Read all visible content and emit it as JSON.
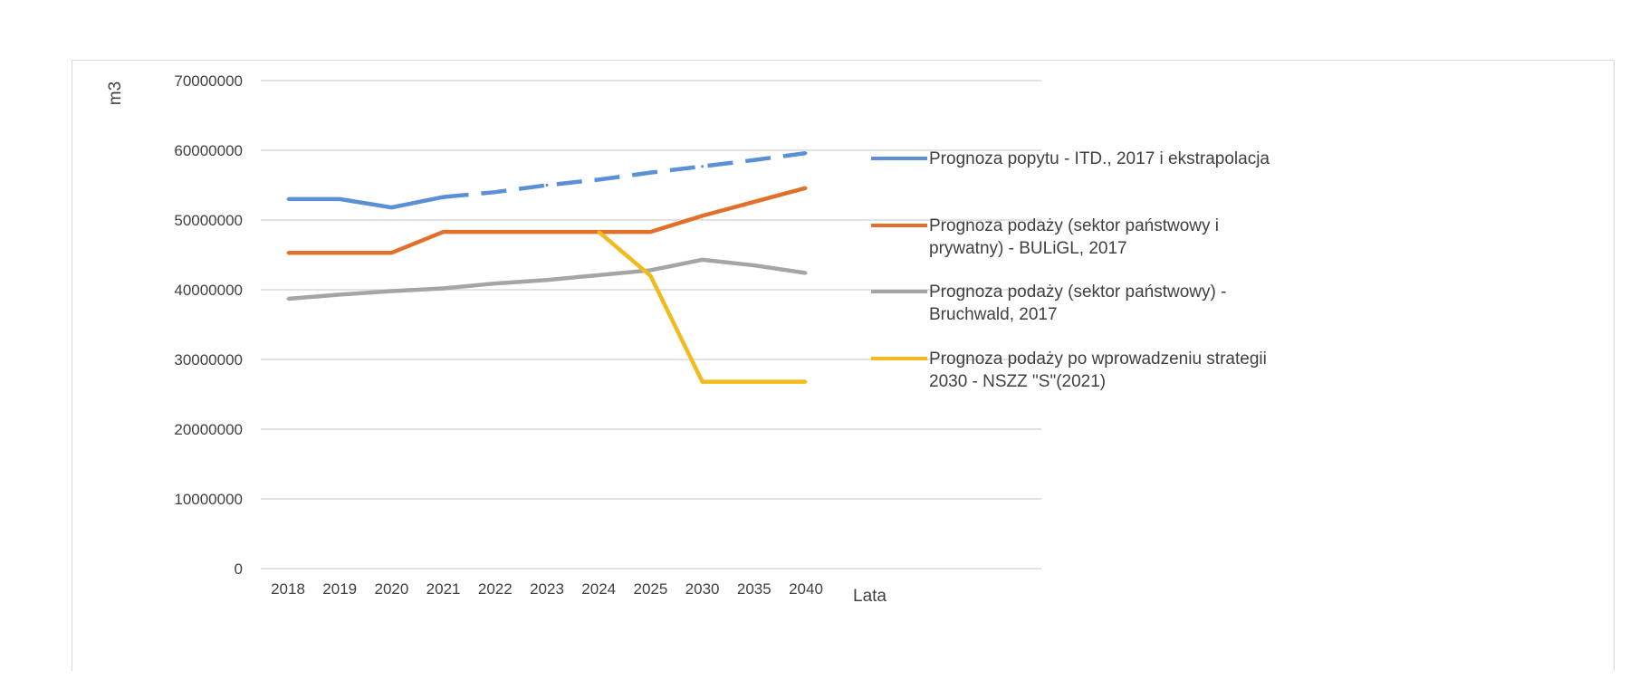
{
  "chart_data": {
    "type": "line",
    "title": "",
    "xlabel": "Lata",
    "ylabel": "m3",
    "categories": [
      "2018",
      "2019",
      "2020",
      "2021",
      "2022",
      "2023",
      "2024",
      "2025",
      "2030",
      "2035",
      "2040"
    ],
    "ylim": [
      0,
      70000000
    ],
    "yticks": [
      "70000000",
      "60000000",
      "50000000",
      "40000000",
      "30000000",
      "20000000",
      "10000000",
      "0"
    ],
    "grid": true,
    "legend_position": "right",
    "series": [
      {
        "name": "Prognoza popytu - ITD., 2017 i ekstrapolacja",
        "color": "#5b8fd6",
        "values": [
          53000000,
          53000000,
          51800000,
          53300000,
          54000000,
          55000000,
          55800000,
          56800000,
          57700000,
          58600000,
          59600000
        ],
        "dashed_from_index": 3
      },
      {
        "name": "Prognoza podaży (sektor państwowy i prywatny) - BULiGL, 2017",
        "color": "#e0702a",
        "values": [
          45300000,
          45300000,
          45300000,
          48300000,
          48300000,
          48300000,
          48300000,
          48300000,
          50600000,
          52600000,
          54600000
        ]
      },
      {
        "name": "Prognoza podaży (sektor państwowy) - Bruchwald, 2017",
        "color": "#a5a5a5",
        "values": [
          38700000,
          39300000,
          39800000,
          40200000,
          40900000,
          41400000,
          42100000,
          42800000,
          44300000,
          43500000,
          42400000
        ]
      },
      {
        "name": "Prognoza podaży po wprowadzeniu strategii 2030 - NSZZ \"S\"(2021)",
        "color": "#f2bb1d",
        "values": [
          null,
          null,
          null,
          null,
          null,
          null,
          48300000,
          42000000,
          26800000,
          26800000,
          26800000
        ]
      }
    ]
  },
  "legend": [
    {
      "lines": [
        "Prognoza popytu - ITD., 2017 i ekstrapolacja"
      ]
    },
    {
      "lines": [
        "Prognoza podaży (sektor państwowy i",
        "prywatny) - BULiGL, 2017"
      ]
    },
    {
      "lines": [
        "Prognoza podaży (sektor państwowy) -",
        "Bruchwald, 2017"
      ]
    },
    {
      "lines": [
        "Prognoza podaży po wprowadzeniu strategii",
        "2030 - NSZZ \"S\"(2021)"
      ]
    }
  ]
}
